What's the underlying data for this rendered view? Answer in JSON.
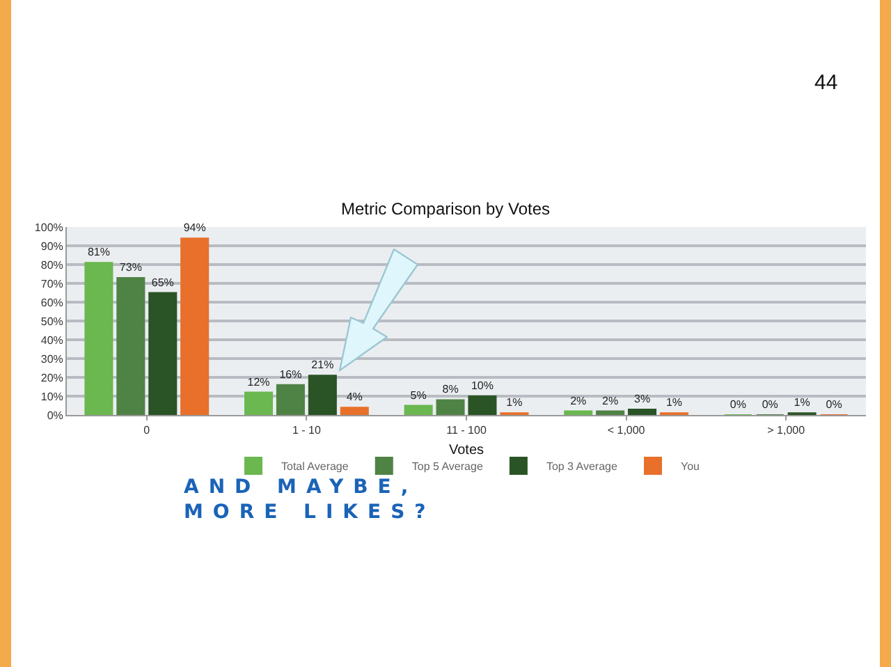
{
  "chart_data": {
    "type": "bar",
    "title": "Metric Comparison by Votes",
    "xlabel": "Votes",
    "categories": [
      "0",
      "1 - 10",
      "11 - 100",
      "< 1,000",
      "> 1,000"
    ],
    "series": [
      {
        "name": "Total Average",
        "color": "#6ab84f",
        "values": [
          81,
          12,
          5,
          2,
          0
        ],
        "value_labels": [
          "81%",
          "12%",
          "5%",
          "2%",
          "0%"
        ]
      },
      {
        "name": "Top 5 Average",
        "color": "#4f8345",
        "values": [
          73,
          16,
          8,
          2,
          0
        ],
        "value_labels": [
          "73%",
          "16%",
          "8%",
          "2%",
          "0%"
        ]
      },
      {
        "name": "Top 3 Average",
        "color": "#2b5426",
        "values": [
          65,
          21,
          10,
          3,
          1
        ],
        "value_labels": [
          "65%",
          "21%",
          "10%",
          "3%",
          "1%"
        ]
      },
      {
        "name": "You",
        "color": "#e8702a",
        "values": [
          94,
          4,
          1,
          1,
          0
        ],
        "value_labels": [
          "94%",
          "4%",
          "1%",
          "1%",
          "0%"
        ]
      }
    ],
    "ylim": [
      0,
      100
    ],
    "yticks": [
      {
        "value": 0,
        "label": "0%"
      },
      {
        "value": 10,
        "label": "10%"
      },
      {
        "value": 20,
        "label": "20%"
      },
      {
        "value": 30,
        "label": "30%"
      },
      {
        "value": 40,
        "label": "40%"
      },
      {
        "value": 50,
        "label": "50%"
      },
      {
        "value": 60,
        "label": "60%"
      },
      {
        "value": 70,
        "label": "70%"
      },
      {
        "value": 80,
        "label": "80%"
      },
      {
        "value": 90,
        "label": "90%"
      },
      {
        "value": 100,
        "label": "100%"
      }
    ],
    "grid": "y",
    "legend": "bottom",
    "annotations": [
      "44",
      "AND MAYBE,\nMORE LIKES?"
    ]
  }
}
